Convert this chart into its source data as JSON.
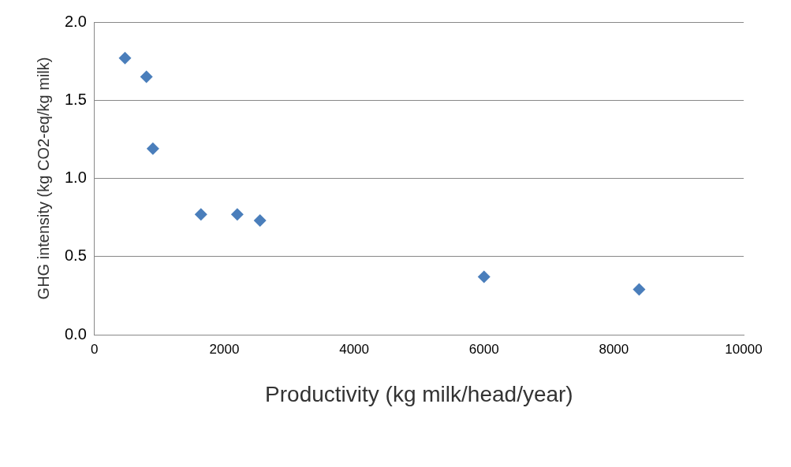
{
  "chart_data": {
    "type": "scatter",
    "xlabel": "Productivity (kg milk/head/year)",
    "ylabel": "GHG intensity (kg CO2-eq/kg milk)",
    "x": [
      470,
      800,
      900,
      1640,
      2200,
      2550,
      6000,
      8390
    ],
    "values": [
      1.77,
      1.65,
      1.19,
      0.77,
      0.77,
      0.73,
      0.37,
      0.29
    ],
    "color": "#4a7ebb",
    "marker": "diamond",
    "xlim": [
      0,
      10000
    ],
    "xticks": [
      0,
      2000,
      4000,
      6000,
      8000,
      10000
    ],
    "ylim": [
      0,
      2
    ],
    "yticks": [
      {
        "value": 0,
        "label": "0.0"
      },
      {
        "value": 0.5,
        "label": "0.5"
      },
      {
        "value": 1,
        "label": "1.0"
      },
      {
        "value": 1.5,
        "label": "1.5"
      },
      {
        "value": 2,
        "label": "2.0"
      }
    ],
    "grid": "y",
    "legend": false
  }
}
